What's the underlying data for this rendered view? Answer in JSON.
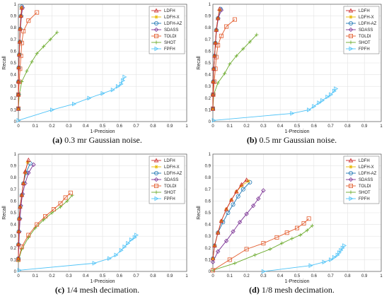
{
  "legend_entries": [
    "LDFH",
    "LDFH-X",
    "LDFH-AZ",
    "SDASS",
    "TOLDI",
    "SHOT",
    "FPFH"
  ],
  "series_colors": {
    "LDFH": "#cc2b2b",
    "LDFH-X": "#e8b800",
    "LDFH-AZ": "#1f77b4",
    "SDASS": "#7b3294",
    "TOLDI": "#e35b2c",
    "SHOT": "#6aaa2a",
    "FPFH": "#4fc3f7"
  },
  "series_markers": {
    "LDFH": "triangle-up",
    "LDFH-X": "star",
    "LDFH-AZ": "circle",
    "SDASS": "diamond",
    "TOLDI": "square",
    "SHOT": "plus",
    "FPFH": "triangle-right"
  },
  "chart_data": [
    {
      "type": "line",
      "caption_letter": "(a)",
      "caption_text": "0.3 mr Gaussian noise.",
      "xlabel": "1-Precision",
      "ylabel": "Recall",
      "xlim": [
        0,
        1
      ],
      "ylim": [
        0,
        1
      ],
      "xticks": [
        "0",
        "0.1",
        "0.2",
        "0.3",
        "0.4",
        "0.5",
        "0.6",
        "0.7",
        "0.8",
        "0.9",
        "1"
      ],
      "yticks": [
        "0",
        "0.1",
        "0.2",
        "0.3",
        "0.4",
        "0.5",
        "0.6",
        "0.7",
        "0.8",
        "0.9",
        "1"
      ],
      "grid": true,
      "legend_position": "top-right",
      "series": [
        {
          "name": "LDFH",
          "x": [
            0,
            0,
            0,
            0.002,
            0.005,
            0.008,
            0.01,
            0.015,
            0.02
          ],
          "y": [
            0.11,
            0.23,
            0.34,
            0.46,
            0.57,
            0.68,
            0.79,
            0.9,
            0.97
          ]
        },
        {
          "name": "LDFH-X",
          "x": [
            0,
            0,
            0,
            0.002,
            0.005,
            0.008,
            0.01,
            0.015,
            0.018
          ],
          "y": [
            0.11,
            0.23,
            0.34,
            0.46,
            0.57,
            0.68,
            0.79,
            0.9,
            0.97
          ]
        },
        {
          "name": "LDFH-AZ",
          "x": [
            0,
            0,
            0,
            0.002,
            0.005,
            0.008,
            0.01,
            0.015,
            0.02
          ],
          "y": [
            0.11,
            0.23,
            0.34,
            0.46,
            0.57,
            0.68,
            0.79,
            0.9,
            0.98
          ]
        },
        {
          "name": "SDASS",
          "x": [
            0,
            0,
            0,
            0.002,
            0.005,
            0.008,
            0.012,
            0.018,
            0.025
          ],
          "y": [
            0.11,
            0.23,
            0.34,
            0.46,
            0.57,
            0.68,
            0.79,
            0.9,
            0.97
          ]
        },
        {
          "name": "TOLDI",
          "x": [
            0,
            0,
            0.005,
            0.01,
            0.015,
            0.02,
            0.03,
            0.06,
            0.11
          ],
          "y": [
            0.11,
            0.23,
            0.34,
            0.45,
            0.56,
            0.67,
            0.77,
            0.86,
            0.93
          ]
        },
        {
          "name": "SHOT",
          "x": [
            0,
            0.005,
            0.02,
            0.05,
            0.08,
            0.11,
            0.15,
            0.19,
            0.23
          ],
          "y": [
            0.11,
            0.23,
            0.34,
            0.43,
            0.51,
            0.58,
            0.64,
            0.7,
            0.76
          ]
        },
        {
          "name": "FPFH",
          "x": [
            0,
            0.2,
            0.33,
            0.42,
            0.5,
            0.56,
            0.59,
            0.61,
            0.62,
            0.63
          ],
          "y": [
            0.01,
            0.1,
            0.15,
            0.2,
            0.24,
            0.27,
            0.3,
            0.32,
            0.35,
            0.38
          ]
        }
      ]
    },
    {
      "type": "line",
      "caption_letter": "(b)",
      "caption_text": "0.5 mr Gaussian noise.",
      "xlabel": "1-Precision",
      "ylabel": "Recall",
      "xlim": [
        0,
        1
      ],
      "ylim": [
        0,
        1
      ],
      "xticks": [
        "0",
        "0.1",
        "0.2",
        "0.3",
        "0.4",
        "0.5",
        "0.6",
        "0.7",
        "0.8",
        "0.9",
        "1"
      ],
      "yticks": [
        "0",
        "0.1",
        "0.2",
        "0.3",
        "0.4",
        "0.5",
        "0.6",
        "0.7",
        "0.8",
        "0.9",
        "1"
      ],
      "grid": true,
      "legend_position": "top-right",
      "series": [
        {
          "name": "LDFH",
          "x": [
            0,
            0,
            0.002,
            0.005,
            0.01,
            0.015,
            0.02,
            0.03,
            0.04
          ],
          "y": [
            0.11,
            0.23,
            0.34,
            0.45,
            0.56,
            0.67,
            0.78,
            0.88,
            0.96
          ]
        },
        {
          "name": "LDFH-X",
          "x": [
            0,
            0,
            0.002,
            0.005,
            0.01,
            0.015,
            0.02,
            0.03,
            0.04
          ],
          "y": [
            0.11,
            0.23,
            0.34,
            0.45,
            0.56,
            0.67,
            0.78,
            0.88,
            0.95
          ]
        },
        {
          "name": "LDFH-AZ",
          "x": [
            0,
            0,
            0.002,
            0.005,
            0.01,
            0.015,
            0.02,
            0.03,
            0.045
          ],
          "y": [
            0.11,
            0.23,
            0.34,
            0.45,
            0.56,
            0.67,
            0.78,
            0.88,
            0.96
          ]
        },
        {
          "name": "SDASS",
          "x": [
            0,
            0,
            0.002,
            0.005,
            0.01,
            0.016,
            0.022,
            0.032,
            0.05
          ],
          "y": [
            0.11,
            0.23,
            0.34,
            0.45,
            0.56,
            0.67,
            0.78,
            0.88,
            0.95
          ]
        },
        {
          "name": "TOLDI",
          "x": [
            0,
            0.002,
            0.008,
            0.015,
            0.02,
            0.03,
            0.05,
            0.08,
            0.13
          ],
          "y": [
            0.11,
            0.23,
            0.34,
            0.45,
            0.55,
            0.65,
            0.73,
            0.81,
            0.87
          ]
        },
        {
          "name": "SHOT",
          "x": [
            0,
            0.005,
            0.03,
            0.07,
            0.1,
            0.14,
            0.18,
            0.22,
            0.26
          ],
          "y": [
            0.11,
            0.23,
            0.33,
            0.41,
            0.49,
            0.56,
            0.62,
            0.68,
            0.74
          ]
        },
        {
          "name": "FPFH",
          "x": [
            0.005,
            0.47,
            0.57,
            0.6,
            0.63,
            0.65,
            0.68,
            0.7,
            0.72,
            0.73
          ],
          "y": [
            0.01,
            0.07,
            0.1,
            0.13,
            0.16,
            0.18,
            0.21,
            0.23,
            0.26,
            0.28
          ]
        }
      ]
    },
    {
      "type": "line",
      "caption_letter": "(c)",
      "caption_text": "1/4 mesh decimation.",
      "xlabel": "1-Precision",
      "ylabel": "Recall",
      "xlim": [
        0,
        1
      ],
      "ylim": [
        0,
        1
      ],
      "xticks": [
        "0",
        "0.1",
        "0.2",
        "0.3",
        "0.4",
        "0.5",
        "0.6",
        "0.7",
        "0.8",
        "0.9",
        "1"
      ],
      "yticks": [
        "0",
        "0.1",
        "0.2",
        "0.3",
        "0.4",
        "0.5",
        "0.6",
        "0.7",
        "0.8",
        "0.9",
        "1"
      ],
      "grid": true,
      "legend_position": "top-right",
      "series": [
        {
          "name": "LDFH",
          "x": [
            0,
            0,
            0.002,
            0.005,
            0.01,
            0.02,
            0.03,
            0.04,
            0.06
          ],
          "y": [
            0.11,
            0.23,
            0.34,
            0.45,
            0.55,
            0.65,
            0.75,
            0.85,
            0.95
          ]
        },
        {
          "name": "LDFH-X",
          "x": [
            0,
            0,
            0.002,
            0.005,
            0.01,
            0.02,
            0.03,
            0.04,
            0.055
          ],
          "y": [
            0.11,
            0.23,
            0.34,
            0.45,
            0.55,
            0.65,
            0.75,
            0.84,
            0.93
          ]
        },
        {
          "name": "LDFH-AZ",
          "x": [
            0,
            0,
            0.002,
            0.005,
            0.01,
            0.02,
            0.03,
            0.045,
            0.07
          ],
          "y": [
            0.11,
            0.23,
            0.34,
            0.45,
            0.55,
            0.65,
            0.75,
            0.84,
            0.92
          ]
        },
        {
          "name": "SDASS",
          "x": [
            0,
            0.003,
            0.006,
            0.01,
            0.015,
            0.025,
            0.04,
            0.06,
            0.09
          ],
          "y": [
            0.11,
            0.23,
            0.34,
            0.45,
            0.56,
            0.66,
            0.75,
            0.84,
            0.91
          ]
        },
        {
          "name": "TOLDI",
          "x": [
            0,
            0.02,
            0.06,
            0.11,
            0.16,
            0.21,
            0.25,
            0.28,
            0.31
          ],
          "y": [
            0.1,
            0.21,
            0.31,
            0.4,
            0.47,
            0.53,
            0.58,
            0.63,
            0.67
          ]
        },
        {
          "name": "SHOT",
          "x": [
            0,
            0.02,
            0.06,
            0.1,
            0.15,
            0.2,
            0.25,
            0.29,
            0.32
          ],
          "y": [
            0.09,
            0.19,
            0.29,
            0.37,
            0.44,
            0.5,
            0.55,
            0.6,
            0.65
          ]
        },
        {
          "name": "FPFH",
          "x": [
            0.005,
            0.45,
            0.54,
            0.58,
            0.61,
            0.63,
            0.65,
            0.67,
            0.69,
            0.7
          ],
          "y": [
            0.01,
            0.07,
            0.11,
            0.14,
            0.18,
            0.21,
            0.24,
            0.27,
            0.29,
            0.31
          ]
        }
      ]
    },
    {
      "type": "line",
      "caption_letter": "(d)",
      "caption_text": "1/8 mesh decimation.",
      "xlabel": "1-Precision",
      "ylabel": "Recall",
      "xlim": [
        0,
        1
      ],
      "ylim": [
        0,
        1
      ],
      "xticks": [
        "0",
        "0.1",
        "0.2",
        "0.3",
        "0.4",
        "0.5",
        "0.6",
        "0.7",
        "0.8",
        "0.9",
        "1"
      ],
      "yticks": [
        "0",
        "0.1",
        "0.2",
        "0.3",
        "0.4",
        "0.5",
        "0.6",
        "0.7",
        "0.8",
        "0.9",
        "1"
      ],
      "grid": true,
      "legend_position": "top-right",
      "series": [
        {
          "name": "LDFH",
          "x": [
            0,
            0.01,
            0.03,
            0.05,
            0.08,
            0.11,
            0.14,
            0.17,
            0.2
          ],
          "y": [
            0.11,
            0.22,
            0.33,
            0.43,
            0.53,
            0.61,
            0.68,
            0.74,
            0.78
          ]
        },
        {
          "name": "LDFH-X",
          "x": [
            0,
            0.01,
            0.03,
            0.05,
            0.08,
            0.11,
            0.14,
            0.17,
            0.21
          ],
          "y": [
            0.11,
            0.22,
            0.33,
            0.43,
            0.53,
            0.61,
            0.68,
            0.73,
            0.77
          ]
        },
        {
          "name": "LDFH-AZ",
          "x": [
            0,
            0.01,
            0.03,
            0.06,
            0.09,
            0.12,
            0.15,
            0.18,
            0.22
          ],
          "y": [
            0.11,
            0.22,
            0.33,
            0.42,
            0.5,
            0.57,
            0.64,
            0.7,
            0.76
          ]
        },
        {
          "name": "SDASS",
          "x": [
            0,
            0.03,
            0.08,
            0.12,
            0.16,
            0.2,
            0.24,
            0.27,
            0.3
          ],
          "y": [
            0.08,
            0.17,
            0.26,
            0.34,
            0.42,
            0.49,
            0.56,
            0.62,
            0.69
          ]
        },
        {
          "name": "TOLDI",
          "x": [
            0,
            0.1,
            0.2,
            0.3,
            0.38,
            0.44,
            0.5,
            0.54,
            0.57
          ],
          "y": [
            0.01,
            0.1,
            0.19,
            0.24,
            0.29,
            0.33,
            0.37,
            0.41,
            0.45
          ]
        },
        {
          "name": "SHOT",
          "x": [
            0,
            0.13,
            0.25,
            0.34,
            0.41,
            0.47,
            0.52,
            0.56,
            0.59
          ],
          "y": [
            0.01,
            0.07,
            0.14,
            0.19,
            0.24,
            0.28,
            0.31,
            0.35,
            0.39
          ]
        },
        {
          "name": "FPFH",
          "x": [
            0.3,
            0.58,
            0.66,
            0.7,
            0.72,
            0.74,
            0.75,
            0.76,
            0.77,
            0.78
          ],
          "y": [
            0.0,
            0.05,
            0.08,
            0.1,
            0.12,
            0.14,
            0.16,
            0.18,
            0.2,
            0.22
          ]
        }
      ]
    }
  ]
}
